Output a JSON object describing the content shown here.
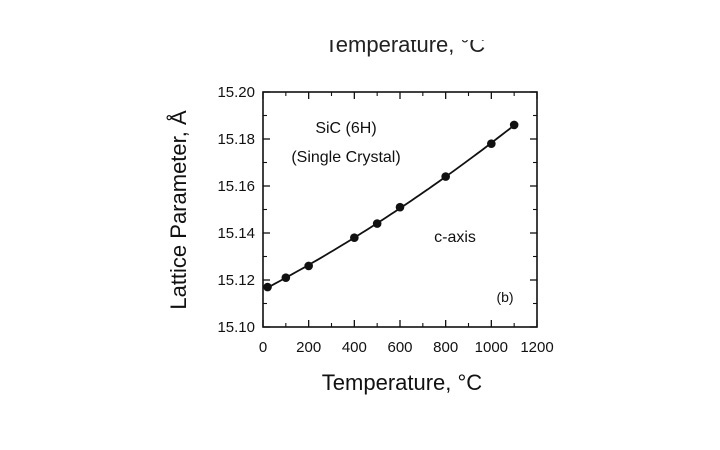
{
  "chart_data": {
    "type": "scatter",
    "xlabel": "Temperature, °C",
    "ylabel": "Lattice Parameter, Å",
    "xlim": [
      0,
      1200
    ],
    "ylim": [
      15.1,
      15.2
    ],
    "x_ticks": [
      "0",
      "200",
      "400",
      "600",
      "800",
      "1000",
      "1200"
    ],
    "y_ticks": [
      "15.10",
      "15.12",
      "15.14",
      "15.16",
      "15.18",
      "15.20"
    ],
    "cropped_top_label": "Temperature, °C",
    "annotations": [
      "SiC (6H)",
      "(Single Crystal)",
      "c-axis",
      "(b)"
    ],
    "series": [
      {
        "x": [
          20,
          100,
          200,
          400,
          500,
          600,
          800,
          1000,
          1100
        ],
        "y": [
          15.117,
          15.121,
          15.126,
          15.138,
          15.144,
          15.151,
          15.164,
          15.178,
          15.186
        ],
        "marker": "filled-circle",
        "fit_line": true
      }
    ],
    "grid": false,
    "color": "#111111"
  }
}
